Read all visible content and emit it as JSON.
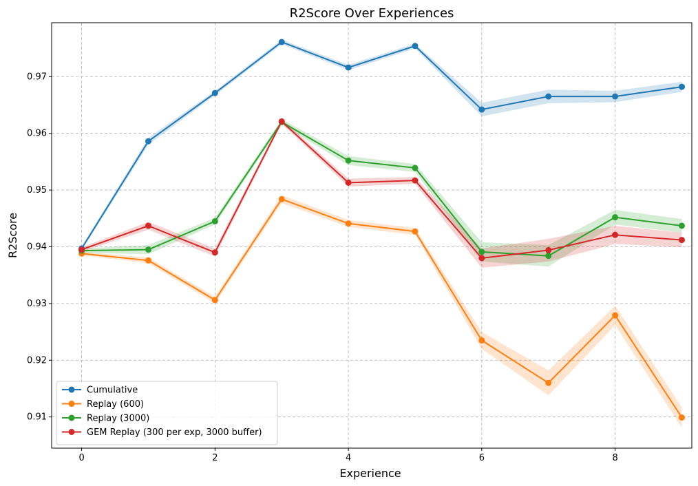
{
  "chart_data": {
    "type": "line",
    "title": "R2Score Over Experiences",
    "xlabel": "Experience",
    "ylabel": "R2Score",
    "x": [
      0,
      1,
      2,
      3,
      4,
      5,
      6,
      7,
      8,
      9
    ],
    "xlim": [
      -0.45,
      9.15
    ],
    "ylim": [
      0.9045,
      0.9795
    ],
    "xticks": [
      0,
      2,
      4,
      6,
      8
    ],
    "xtick_labels": [
      "0",
      "2",
      "4",
      "6",
      "8"
    ],
    "yticks": [
      0.91,
      0.92,
      0.93,
      0.94,
      0.95,
      0.96,
      0.97
    ],
    "ytick_labels": [
      "0.91",
      "0.92",
      "0.93",
      "0.94",
      "0.95",
      "0.96",
      "0.97"
    ],
    "grid": true,
    "legend_position": "lower-left",
    "series": [
      {
        "name": "Cumulative",
        "color": "#1f77b4",
        "values": [
          0.9397,
          0.9586,
          0.9671,
          0.9761,
          0.9716,
          0.9754,
          0.9642,
          0.9665,
          0.9665,
          0.9682
        ],
        "band": [
          0.0004,
          0.0006,
          0.0004,
          0.0004,
          0.0005,
          0.0004,
          0.0012,
          0.0012,
          0.001,
          0.0009
        ]
      },
      {
        "name": "Replay (600)",
        "color": "#ff7f0e",
        "values": [
          0.9388,
          0.9376,
          0.9306,
          0.9484,
          0.9441,
          0.9427,
          0.9235,
          0.916,
          0.9279,
          0.9099
        ],
        "band": [
          0.0003,
          0.0005,
          0.0006,
          0.0007,
          0.0006,
          0.0006,
          0.0015,
          0.0022,
          0.0017,
          0.0018
        ]
      },
      {
        "name": "Replay (3000)",
        "color": "#2ca02c",
        "values": [
          0.9393,
          0.9395,
          0.9445,
          0.962,
          0.9552,
          0.9539,
          0.9391,
          0.9384,
          0.9452,
          0.9437
        ],
        "band": [
          0.0004,
          0.0008,
          0.0006,
          0.0005,
          0.0008,
          0.0007,
          0.0017,
          0.0019,
          0.0013,
          0.0012
        ]
      },
      {
        "name": "GEM Replay (300 per exp, 3000 buffer)",
        "color": "#d62728",
        "values": [
          0.9395,
          0.9437,
          0.939,
          0.9621,
          0.9513,
          0.9517,
          0.938,
          0.9394,
          0.9421,
          0.9412
        ],
        "band": [
          0.0004,
          0.0007,
          0.0007,
          0.0004,
          0.0007,
          0.0006,
          0.0017,
          0.002,
          0.0016,
          0.0013
        ]
      }
    ]
  }
}
